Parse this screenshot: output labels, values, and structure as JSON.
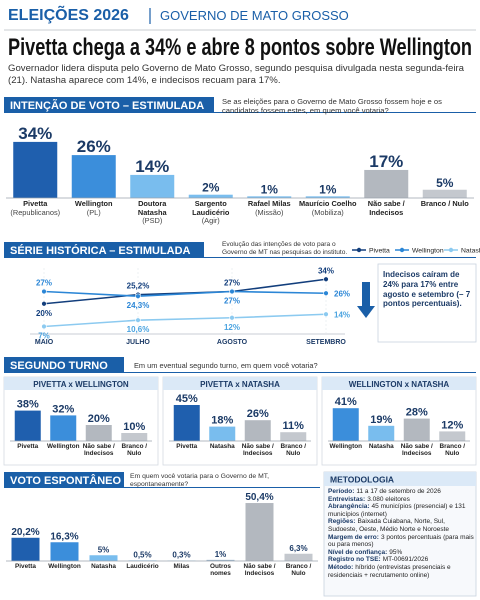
{
  "header": {
    "brand": "ELEIÇÕES 2026",
    "section": "GOVERNO DE MATO GROSSO"
  },
  "headline": "Pivetta chega a 34% e abre 8 pontos sobre Wellington",
  "lede": "Governador lidera disputa pelo Governo de Mato Grosso, segundo pesquisa divulgada nesta segunda-feira (21). Natasha aparece com 14%, e indecisos recuam para 17%.",
  "second_round": {
    "title": "SEGUNDO TURNO",
    "question": "Em um eventual segundo turno, em quem você votaria?"
  },
  "chart_data": [
    {
      "type": "bar",
      "title": "INTENÇÃO DE VOTO – ESTIMULADA",
      "subtitle": "Se as eleições para o Governo de Mato Grosso fossem hoje e os candidatos fossem estes, em quem você votaria?",
      "categories": [
        "Pivetta",
        "Wellington",
        "Doutora Natasha",
        "Sargento Laudicério",
        "Rafael Milas",
        "Maurício Coelho",
        "Não sabe / Indecisos",
        "Branco / Nulo"
      ],
      "category_notes": [
        "(Republicanos)",
        "(PL)",
        "(PSD)",
        "(Agir)",
        "(Missão)",
        "(Mobiliza)",
        null,
        null
      ],
      "values": [
        34,
        26,
        14,
        2,
        1,
        1,
        17,
        5
      ],
      "value_labels": [
        "34%",
        "26%",
        "14%",
        "2%",
        "1%",
        "1%",
        "17%",
        "5%"
      ],
      "colors": [
        "#1f5fae",
        "#3b8edb",
        "#79bdee",
        "#79bdee",
        "#79bdee",
        "#79bdee",
        "#b3b8bf",
        "#c4c8ce"
      ]
    },
    {
      "type": "line",
      "title": "SÉRIE HISTÓRICA – ESTIMULADA",
      "subtitle": "Evolução das intenções de voto para o Governo de MT nas pesquisas do instituto.",
      "categories": [
        "MAIO",
        "JULHO",
        "AGOSTO",
        "SETEMBRO"
      ],
      "series": [
        {
          "name": "Pivetta",
          "color": "#123e7c",
          "values": [
            20,
            25.2,
            27,
            34
          ],
          "value_labels": [
            "20%",
            "25,2%",
            "27%",
            "34%"
          ]
        },
        {
          "name": "Wellington",
          "color": "#2b86d6",
          "values": [
            27,
            24.3,
            27,
            26
          ],
          "value_labels": [
            "27%",
            "24,3%",
            "27%",
            "26%"
          ]
        },
        {
          "name": "Natasha",
          "color": "#8ccaf0",
          "values": [
            7,
            10.6,
            12,
            14
          ],
          "value_labels": [
            "7%",
            "10,6%",
            "12%",
            "14%"
          ]
        }
      ],
      "annotation": "Indecisos caíram de 24% para 17% entre agosto e setembro (– 7 pontos percentuais)."
    },
    {
      "type": "bar",
      "title": "PIVETTA x WELLINGTON",
      "categories": [
        "Pivetta",
        "Wellington",
        "Não sabe / Indecisos",
        "Branco / Nulo"
      ],
      "values": [
        38,
        32,
        20,
        10
      ],
      "value_labels": [
        "38%",
        "32%",
        "20%",
        "10%"
      ],
      "colors": [
        "#1f5fae",
        "#3b8edb",
        "#b3b8bf",
        "#c4c8ce"
      ]
    },
    {
      "type": "bar",
      "title": "PIVETTA x NATASHA",
      "categories": [
        "Pivetta",
        "Natasha",
        "Não sabe / Indecisos",
        "Branco / Nulo"
      ],
      "values": [
        45,
        18,
        26,
        11
      ],
      "value_labels": [
        "45%",
        "18%",
        "26%",
        "11%"
      ],
      "colors": [
        "#1f5fae",
        "#79bdee",
        "#b3b8bf",
        "#c4c8ce"
      ]
    },
    {
      "type": "bar",
      "title": "WELLINGTON x NATASHA",
      "categories": [
        "Wellington",
        "Natasha",
        "Não sabe / Indecisos",
        "Branco / Nulo"
      ],
      "values": [
        41,
        19,
        28,
        12
      ],
      "value_labels": [
        "41%",
        "19%",
        "28%",
        "12%"
      ],
      "colors": [
        "#3b8edb",
        "#79bdee",
        "#b3b8bf",
        "#c4c8ce"
      ]
    },
    {
      "type": "bar",
      "title": "VOTO ESPONTÂNEO",
      "subtitle": "Em quem você votaria para o Governo de MT, espontaneamente?",
      "categories": [
        "Pivetta",
        "Wellington",
        "Natasha",
        "Laudicério",
        "Milas",
        "Outros nomes",
        "Não sabe / Indecisos",
        "Branco / Nulo"
      ],
      "values": [
        20.2,
        16.3,
        5,
        0.5,
        0.3,
        1,
        50.4,
        6.3
      ],
      "value_labels": [
        "20,2%",
        "16,3%",
        "5%",
        "0,5%",
        "0,3%",
        "1%",
        "50,4%",
        "6,3%"
      ],
      "colors": [
        "#1f5fae",
        "#3b8edb",
        "#79bdee",
        "#79bdee",
        "#79bdee",
        "#9fb6cc",
        "#b3b8bf",
        "#c4c8ce"
      ]
    }
  ],
  "methodology": {
    "title": "METODOLOGIA",
    "items": [
      {
        "label": "Período:",
        "text": "11 a 17 de setembro de 2026"
      },
      {
        "label": "Entrevistas:",
        "text": "3.080 eleitores"
      },
      {
        "label": "Abrangência:",
        "text": "45 municípios (presencial) e 131 municípios (internet)"
      },
      {
        "label": "Regiões:",
        "text": "Baixada Cuiabana, Norte, Sul, Sudoeste, Oeste, Médio Norte e Noroeste"
      },
      {
        "label": "Margem de erro:",
        "text": "3 pontos percentuais (para mais ou para menos)"
      },
      {
        "label": "Nível de confiança:",
        "text": "95%"
      },
      {
        "label": "Registro no TSE:",
        "text": "MT-00691/2026"
      },
      {
        "label": "Método:",
        "text": "híbrido (entrevistas presenciais e residenciais + recrutamento online)"
      }
    ]
  }
}
